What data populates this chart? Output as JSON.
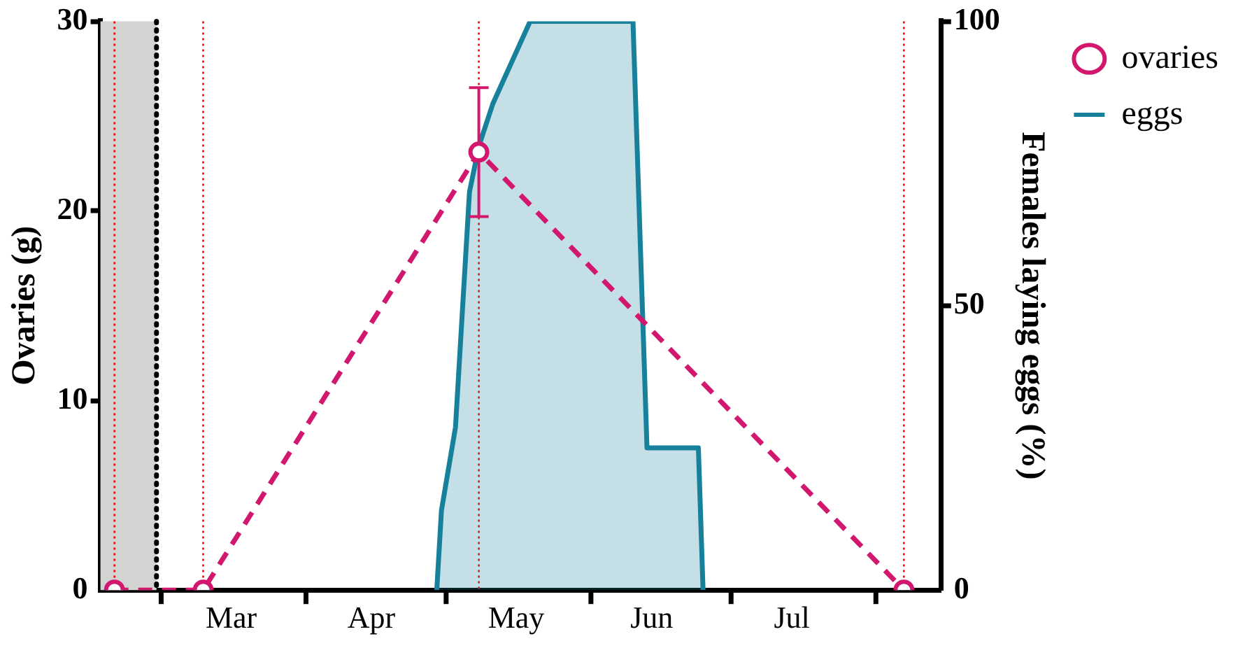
{
  "chart_data": {
    "type": "line",
    "ylabel": "Ovaries (g)",
    "y2label": "Females laying eggs (%)",
    "xlim": [
      "--02-16",
      "--08-15"
    ],
    "xticks": [
      {
        "value": "--03-01",
        "label": null
      },
      {
        "value": "--03-16",
        "label": "Mar"
      },
      {
        "value": "--04-01",
        "label": null
      },
      {
        "value": "--04-15",
        "label": "Apr"
      },
      {
        "value": "--05-01",
        "label": null
      },
      {
        "value": "--05-16",
        "label": "May"
      },
      {
        "value": "--06-01",
        "label": null
      },
      {
        "value": "--06-14",
        "label": "Jun"
      },
      {
        "value": "--07-01",
        "label": null
      },
      {
        "value": "--07-14",
        "label": "Jul"
      },
      {
        "value": "--08-01",
        "label": null
      }
    ],
    "ylim": [
      0,
      30
    ],
    "yticks": [
      0,
      10,
      20,
      30
    ],
    "y2lim": [
      0,
      100
    ],
    "y2ticks": [
      0,
      50,
      100
    ],
    "grid": false,
    "legend": "top right",
    "series": [
      {
        "name": "ovaries",
        "type": "line",
        "color": "#d2176e",
        "marker": "circle",
        "line_style": "dashed",
        "x": [
          "--02-19",
          "--03-10",
          "--05-08",
          "--08-07"
        ],
        "values": [
          0,
          0,
          23.1,
          0
        ],
        "errors": [
          null,
          null,
          [
            19.7,
            26.5
          ],
          null
        ]
      },
      {
        "name": "eggs",
        "type": "area",
        "axis": "y2",
        "color": "#17809a",
        "marker": "none",
        "line_style": "solid",
        "x": [
          "--04-29",
          "--04-30",
          "--05-03",
          "--05-06",
          "--05-08",
          "--05-11",
          "--05-19",
          "--06-10",
          "--06-13",
          "--06-24",
          "--06-25"
        ],
        "values": [
          0,
          14,
          28.6,
          70,
          78,
          85.5,
          100,
          100,
          25,
          25,
          0
        ]
      }
    ],
    "ref_lines": [
      {
        "axis": "x",
        "value": "--02-19",
        "color": "#ff0000",
        "line_style": "dotted"
      },
      {
        "axis": "x",
        "value": "--03-10",
        "color": "#ff0000",
        "line_style": "dotted"
      },
      {
        "axis": "x",
        "value": "--05-08",
        "color": "#ff0000",
        "line_style": "dotted"
      },
      {
        "axis": "x",
        "value": "--08-07",
        "color": "#ff0000",
        "line_style": "dotted"
      },
      {
        "axis": "x",
        "value": "--02-28",
        "color": "#000000",
        "line_style": "dotted"
      }
    ],
    "bands": [
      {
        "axis": "x",
        "from": "--02-16",
        "to": "--02-28",
        "color": "#d3d3d3"
      }
    ]
  }
}
